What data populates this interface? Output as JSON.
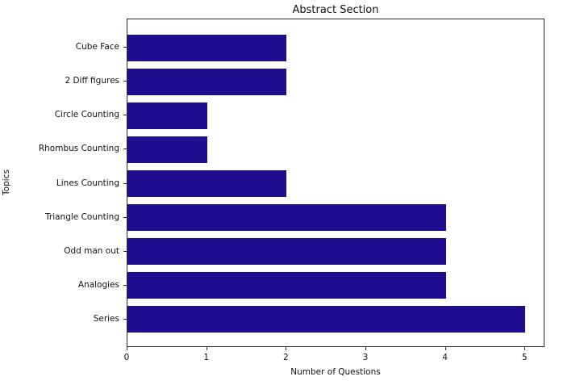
{
  "title": "Abstract Section",
  "chart_data": {
    "type": "bar",
    "orientation": "horizontal",
    "title": "Abstract Section",
    "xlabel": "Number of Questions",
    "ylabel": "Topics",
    "categories_top_to_bottom": [
      "Cube Face",
      "2 Diff figures",
      "Circle Counting",
      "Rhombus Counting",
      "Lines Counting",
      "Triangle Counting",
      "Odd man out",
      "Analogies",
      "Series"
    ],
    "values": [
      2,
      2,
      1,
      1,
      2,
      4,
      4,
      4,
      5
    ],
    "x_ticks": [
      0,
      1,
      2,
      3,
      4,
      5
    ],
    "xlim": [
      0,
      5.25
    ],
    "bar_color": "#1e0e8f",
    "spine_color": "#2b2b2b",
    "background_color": "#ffffff",
    "grid": false,
    "legend": null
  }
}
